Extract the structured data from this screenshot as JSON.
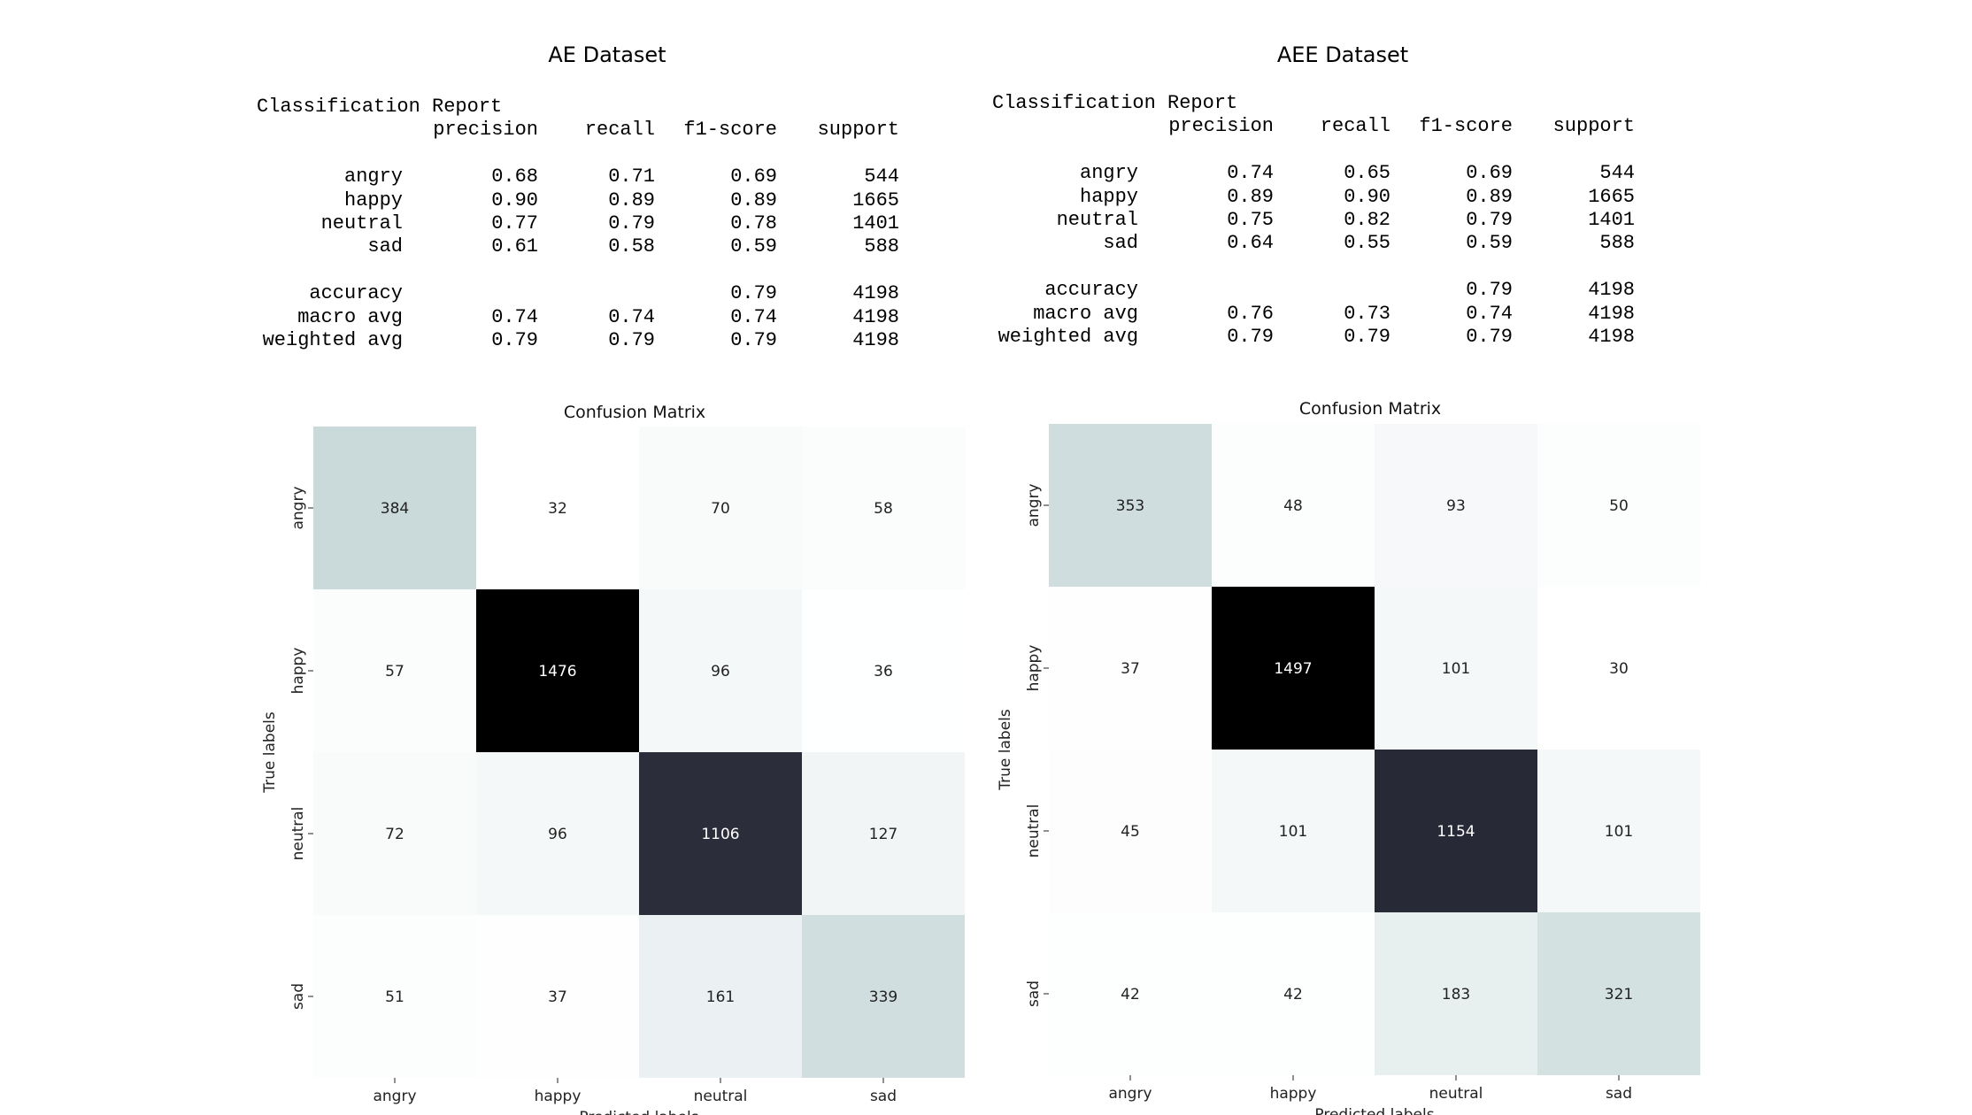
{
  "panels": [
    {
      "dataset_title": "AE Dataset",
      "report": {
        "title": "Classification Report",
        "columns": [
          "precision",
          "recall",
          "f1-score",
          "support"
        ],
        "rows": [
          {
            "label": "angry",
            "values": [
              "0.68",
              "0.71",
              "0.69",
              "544"
            ]
          },
          {
            "label": "happy",
            "values": [
              "0.90",
              "0.89",
              "0.89",
              "1665"
            ]
          },
          {
            "label": "neutral",
            "values": [
              "0.77",
              "0.79",
              "0.78",
              "1401"
            ]
          },
          {
            "label": "sad",
            "values": [
              "0.61",
              "0.58",
              "0.59",
              "588"
            ]
          }
        ],
        "summary": [
          {
            "label": "accuracy",
            "values": [
              "",
              "",
              "0.79",
              "4198"
            ]
          },
          {
            "label": "macro avg",
            "values": [
              "0.74",
              "0.74",
              "0.74",
              "4198"
            ]
          },
          {
            "label": "weighted avg",
            "values": [
              "0.79",
              "0.79",
              "0.79",
              "4198"
            ]
          }
        ]
      }
    },
    {
      "dataset_title": "AEE Dataset",
      "report": {
        "title": "Classification Report",
        "columns": [
          "precision",
          "recall",
          "f1-score",
          "support"
        ],
        "rows": [
          {
            "label": "angry",
            "values": [
              "0.74",
              "0.65",
              "0.69",
              "544"
            ]
          },
          {
            "label": "happy",
            "values": [
              "0.89",
              "0.90",
              "0.89",
              "1665"
            ]
          },
          {
            "label": "neutral",
            "values": [
              "0.75",
              "0.82",
              "0.79",
              "1401"
            ]
          },
          {
            "label": "sad",
            "values": [
              "0.64",
              "0.55",
              "0.59",
              "588"
            ]
          }
        ],
        "summary": [
          {
            "label": "accuracy",
            "values": [
              "",
              "",
              "0.79",
              "4198"
            ]
          },
          {
            "label": "macro avg",
            "values": [
              "0.76",
              "0.73",
              "0.74",
              "4198"
            ]
          },
          {
            "label": "weighted avg",
            "values": [
              "0.79",
              "0.79",
              "0.79",
              "4198"
            ]
          }
        ]
      }
    }
  ],
  "chart_data": [
    {
      "type": "heatmap",
      "title": "Confusion Matrix",
      "xlabel": "Predicted labels",
      "ylabel": "True labels",
      "x_categories": [
        "angry",
        "happy",
        "neutral",
        "sad"
      ],
      "y_categories": [
        "angry",
        "happy",
        "neutral",
        "sad"
      ],
      "values": [
        [
          384,
          32,
          70,
          58
        ],
        [
          57,
          1476,
          96,
          36
        ],
        [
          72,
          96,
          1106,
          127
        ],
        [
          51,
          37,
          161,
          339
        ]
      ],
      "colormap": [
        "#ffffff",
        "#b6cccd",
        "#393a4d",
        "#000000"
      ],
      "colorbar": false
    },
    {
      "type": "heatmap",
      "title": "Confusion Matrix",
      "xlabel": "Predicted labels",
      "ylabel": "True labels",
      "x_categories": [
        "angry",
        "happy",
        "neutral",
        "sad"
      ],
      "y_categories": [
        "angry",
        "happy",
        "neutral",
        "sad"
      ],
      "values": [
        [
          353,
          48,
          93,
          50
        ],
        [
          37,
          1497,
          101,
          30
        ],
        [
          45,
          101,
          1154,
          101
        ],
        [
          42,
          42,
          183,
          321
        ]
      ],
      "colormap": [
        "#ffffff",
        "#b6cccd",
        "#393a4d",
        "#000000"
      ],
      "colorbar": false
    }
  ]
}
